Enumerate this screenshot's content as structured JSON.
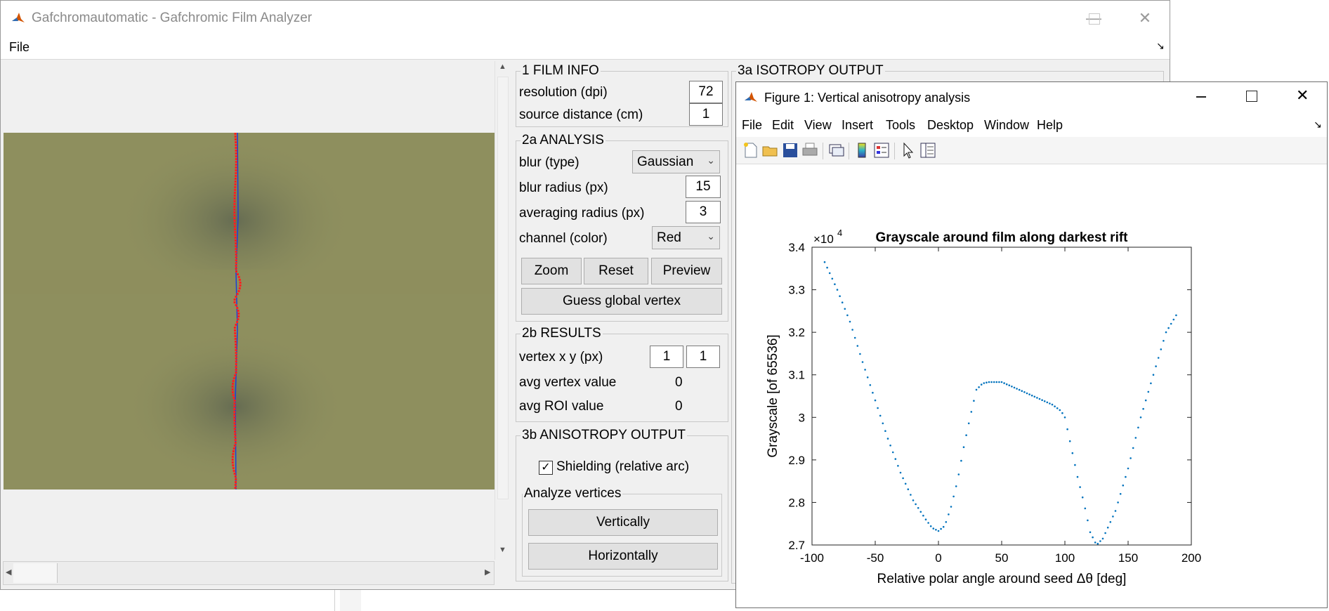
{
  "main_window": {
    "title": "Gafchromautomatic - Gafchromic Film Analyzer",
    "menu": [
      "File"
    ]
  },
  "film_info": {
    "title": "1 FILM INFO",
    "resolution_label": "resolution (dpi)",
    "resolution_value": "72",
    "source_distance_label": "source distance (cm)",
    "source_distance_value": "1"
  },
  "analysis": {
    "title": "2a ANALYSIS",
    "blur_type_label": "blur (type)",
    "blur_type_value": "Gaussian",
    "blur_radius_label": "blur radius (px)",
    "blur_radius_value": "15",
    "averaging_radius_label": "averaging radius (px)",
    "averaging_radius_value": "3",
    "channel_label": "channel (color)",
    "channel_value": "Red",
    "zoom_label": "Zoom",
    "reset_label": "Reset",
    "preview_label": "Preview",
    "guess_label": "Guess global vertex"
  },
  "results": {
    "title": "2b RESULTS",
    "vertex_label": "vertex x y (px)",
    "vertex_x": "1",
    "vertex_y": "1",
    "avg_vertex_label": "avg vertex value",
    "avg_vertex_value": "0",
    "avg_roi_label": "avg ROI value",
    "avg_roi_value": "0"
  },
  "anisotropy": {
    "title": "3b ANISOTROPY OUTPUT",
    "shielding_label": "Shielding (relative arc)",
    "shielding_checked": true,
    "analyze_title": "Analyze vertices",
    "vertically_label": "Vertically",
    "horizontally_label": "Horizontally"
  },
  "isotropy": {
    "title": "3a ISOTROPY OUTPUT"
  },
  "figure_window": {
    "title": "Figure 1: Vertical anisotropy analysis",
    "menu": [
      "File",
      "Edit",
      "View",
      "Insert",
      "Tools",
      "Desktop",
      "Window",
      "Help"
    ],
    "toolbar_icons": [
      "new-figure-icon",
      "open-icon",
      "save-icon",
      "print-icon",
      "link-icon",
      "colorbar-icon",
      "legend-icon",
      "pointer-icon",
      "property-inspector-icon"
    ]
  },
  "chart_data": {
    "type": "scatter",
    "title": "Grayscale around film along darkest rift",
    "xlabel": "Relative polar angle around seed Δθ [deg]",
    "ylabel": "Grayscale [of 65536]",
    "y_exponent_label": "×10",
    "y_exponent_power": "4",
    "xlim": [
      -100,
      200
    ],
    "ylim": [
      27000,
      34000
    ],
    "xticks": [
      "-100",
      "-50",
      "0",
      "50",
      "100",
      "150",
      "200"
    ],
    "xtick_values": [
      -100,
      -50,
      0,
      50,
      100,
      150,
      200
    ],
    "yticks": [
      "2.7",
      "2.8",
      "2.9",
      "3",
      "3.1",
      "3.2",
      "3.3",
      "3.4"
    ],
    "ytick_values": [
      27000,
      28000,
      29000,
      30000,
      31000,
      32000,
      33000,
      34000
    ],
    "grid": false,
    "color": "#0072bd",
    "keypoints": [
      [
        -90,
        33650
      ],
      [
        -80,
        33000
      ],
      [
        -70,
        32250
      ],
      [
        -60,
        31300
      ],
      [
        -50,
        30400
      ],
      [
        -40,
        29500
      ],
      [
        -30,
        28700
      ],
      [
        -20,
        28050
      ],
      [
        -10,
        27600
      ],
      [
        -5,
        27400
      ],
      [
        0,
        27330
      ],
      [
        5,
        27450
      ],
      [
        10,
        27900
      ],
      [
        15,
        28500
      ],
      [
        20,
        29300
      ],
      [
        25,
        30000
      ],
      [
        30,
        30650
      ],
      [
        35,
        30800
      ],
      [
        40,
        30830
      ],
      [
        50,
        30830
      ],
      [
        60,
        30700
      ],
      [
        75,
        30500
      ],
      [
        90,
        30300
      ],
      [
        97,
        30150
      ],
      [
        100,
        30000
      ],
      [
        105,
        29300
      ],
      [
        110,
        28600
      ],
      [
        115,
        28000
      ],
      [
        120,
        27300
      ],
      [
        125,
        27000
      ],
      [
        130,
        27150
      ],
      [
        140,
        27800
      ],
      [
        150,
        28800
      ],
      [
        160,
        30000
      ],
      [
        170,
        31000
      ],
      [
        180,
        32000
      ],
      [
        188,
        32400
      ]
    ],
    "step": 2
  },
  "colors": {
    "film": "#8e8f5e",
    "rift_line": "#1c3fd6",
    "trace_points": "#ff2020",
    "plot_points": "#0072bd"
  }
}
